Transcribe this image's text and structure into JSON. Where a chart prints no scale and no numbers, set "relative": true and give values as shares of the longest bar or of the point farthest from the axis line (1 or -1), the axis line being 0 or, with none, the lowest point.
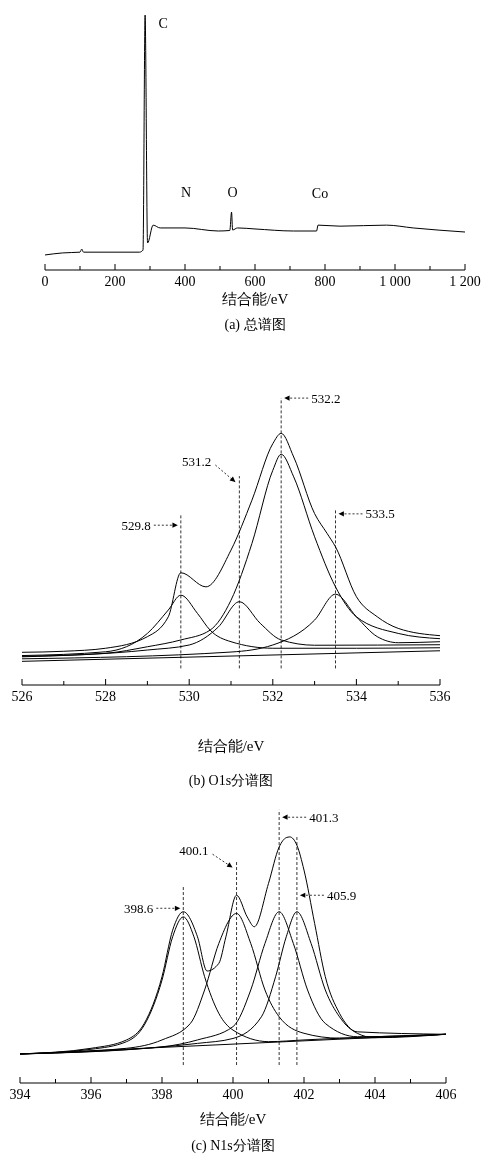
{
  "chart_data": [
    {
      "type": "line",
      "relative": true,
      "xlabel": "结合能/eV",
      "title": "(a) 总谱图",
      "xlim": [
        0,
        1200
      ],
      "xticks": [
        0,
        {
          "value": 100,
          "label": null
        },
        200,
        {
          "value": 300,
          "label": null
        },
        400,
        {
          "value": 500,
          "label": null
        },
        600,
        {
          "value": 700,
          "label": null
        },
        800,
        {
          "value": 900,
          "label": null
        },
        {
          "value": 1000,
          "label": "1 000"
        },
        {
          "value": 1100,
          "label": null
        },
        {
          "value": 1200,
          "label": "1 200"
        }
      ],
      "series": [
        {
          "color": "#000000",
          "x": [
            0,
            50,
            100,
            105,
            110,
            200,
            270,
            280,
            286,
            293,
            309,
            329,
            400,
            495,
            528,
            533,
            536,
            550,
            600,
            710,
            776,
            780,
            843,
            976,
            1052,
            1200
          ],
          "values": [
            0.059,
            0.067,
            0.07,
            0.082,
            0.07,
            0.07,
            0.07,
            0.078,
            1.0,
            0.106,
            0.176,
            0.165,
            0.165,
            0.153,
            0.155,
            0.227,
            0.157,
            0.165,
            0.161,
            0.153,
            0.153,
            0.176,
            0.172,
            0.176,
            0.165,
            0.149
          ]
        }
      ],
      "annotations": [
        {
          "text": "C",
          "x": 286,
          "y": 1.0
        },
        {
          "text": "N",
          "x": 400,
          "y": 0.165
        },
        {
          "text": "O",
          "x": 533,
          "y": 0.227
        },
        {
          "text": "Co",
          "x": 780,
          "y": 0.176
        }
      ]
    },
    {
      "type": "line",
      "relative": true,
      "xlabel": "结合能/eV",
      "title": "(b) O1s分谱图",
      "xlim": [
        526,
        536
      ],
      "xticks": [
        526,
        {
          "value": 527,
          "label": null
        },
        528,
        {
          "value": 529,
          "label": null
        },
        530,
        {
          "value": 531,
          "label": null
        },
        532,
        {
          "value": 533,
          "label": null
        },
        534,
        {
          "value": 535,
          "label": null
        },
        536
      ],
      "series": [
        {
          "color": "#000000",
          "x": [
            526,
            527,
            528,
            529,
            529.5,
            529.8,
            530.4,
            531,
            531.5,
            532,
            532.2,
            532.5,
            533,
            533.3,
            533.5,
            534,
            534.5,
            535,
            536
          ],
          "values": [
            0.13,
            0.134,
            0.146,
            0.192,
            0.271,
            0.446,
            0.39,
            0.536,
            0.734,
            0.959,
            1.0,
            0.906,
            0.681,
            0.602,
            0.549,
            0.351,
            0.271,
            0.225,
            0.196
          ]
        },
        {
          "color": "#000000",
          "x": [
            526,
            528,
            529,
            529.8,
            530.5,
            531,
            531.5,
            532,
            532.2,
            532.5,
            533,
            533.5,
            534,
            535,
            536
          ],
          "values": [
            0.114,
            0.126,
            0.152,
            0.179,
            0.218,
            0.337,
            0.562,
            0.853,
            0.917,
            0.827,
            0.589,
            0.39,
            0.271,
            0.205,
            0.184
          ]
        },
        {
          "color": "#000000",
          "x": [
            526,
            528,
            529,
            529.5,
            529.8,
            530.2,
            530.5,
            531,
            532,
            534,
            536
          ],
          "values": [
            0.117,
            0.132,
            0.205,
            0.298,
            0.357,
            0.284,
            0.218,
            0.172,
            0.146,
            0.146,
            0.148
          ]
        },
        {
          "color": "#000000",
          "x": [
            526,
            529,
            530,
            530.7,
            531.2,
            531.7,
            532.2,
            533,
            536
          ],
          "values": [
            0.112,
            0.139,
            0.159,
            0.231,
            0.331,
            0.245,
            0.179,
            0.158,
            0.16
          ]
        },
        {
          "color": "#000000",
          "x": [
            526,
            531,
            532,
            533,
            533.5,
            534,
            534.5,
            535,
            536
          ],
          "values": [
            0.104,
            0.131,
            0.159,
            0.258,
            0.361,
            0.271,
            0.192,
            0.168,
            0.172
          ]
        },
        {
          "color": "#000000",
          "x": [
            526,
            536
          ],
          "values": [
            0.094,
            0.136
          ]
        }
      ],
      "ref_lines": [
        {
          "axis": "x",
          "value": 529.8,
          "label": "529.8",
          "color": "#000000",
          "line_style": "dashed"
        },
        {
          "axis": "x",
          "value": 531.2,
          "label": "531.2",
          "color": "#000000",
          "line_style": "dashed"
        },
        {
          "axis": "x",
          "value": 532.2,
          "label": "532.2",
          "color": "#000000",
          "line_style": "dashed"
        },
        {
          "axis": "x",
          "value": 533.5,
          "label": "533.5",
          "color": "#000000",
          "line_style": "dashed"
        }
      ]
    },
    {
      "type": "line",
      "relative": true,
      "xlabel": "结合能/eV",
      "title": "(c) N1s分谱图",
      "xlim": [
        394,
        406
      ],
      "xticks": [
        394,
        {
          "value": 395,
          "label": null
        },
        396,
        {
          "value": 397,
          "label": null
        },
        398,
        {
          "value": 399,
          "label": null
        },
        400,
        {
          "value": 401,
          "label": null
        },
        402,
        {
          "value": 403,
          "label": null
        },
        404,
        {
          "value": 405,
          "label": null
        },
        406
      ],
      "series": [
        {
          "color": "#000000",
          "x": [
            394,
            396,
            397,
            397.5,
            398,
            398.3,
            398.6,
            399,
            399.27,
            399.6,
            399.8,
            400.1,
            400.4,
            400.6,
            401,
            401.3,
            401.5,
            401.6,
            401.8,
            402,
            402.3,
            402.6,
            403,
            403.5,
            404,
            406
          ],
          "values": [
            0.118,
            0.141,
            0.175,
            0.242,
            0.432,
            0.621,
            0.696,
            0.594,
            0.455,
            0.486,
            0.594,
            0.763,
            0.675,
            0.635,
            0.811,
            0.959,
            0.997,
            1.0,
            0.966,
            0.865,
            0.648,
            0.432,
            0.283,
            0.202,
            0.184,
            0.198
          ]
        },
        {
          "color": "#000000",
          "x": [
            394,
            396,
            397,
            397.5,
            398,
            398.3,
            398.6,
            398.9,
            399.2,
            399.6,
            400,
            401,
            402,
            403,
            406
          ],
          "values": [
            0.118,
            0.137,
            0.168,
            0.235,
            0.418,
            0.594,
            0.675,
            0.594,
            0.432,
            0.283,
            0.215,
            0.168,
            0.175,
            0.182,
            0.198
          ]
        },
        {
          "color": "#000000",
          "x": [
            394,
            397,
            398,
            398.8,
            399.2,
            399.6,
            400.1,
            400.5,
            400.9,
            401.3,
            402,
            403,
            406
          ],
          "values": [
            0.118,
            0.141,
            0.175,
            0.242,
            0.378,
            0.567,
            0.689,
            0.567,
            0.378,
            0.269,
            0.202,
            0.182,
            0.198
          ]
        },
        {
          "color": "#000000",
          "x": [
            394,
            398,
            399,
            400,
            400.5,
            400.9,
            401.3,
            401.7,
            402.1,
            402.6,
            403.5,
            406
          ],
          "values": [
            0.118,
            0.147,
            0.175,
            0.229,
            0.378,
            0.567,
            0.696,
            0.567,
            0.378,
            0.242,
            0.188,
            0.198
          ]
        },
        {
          "color": "#000000",
          "x": [
            394,
            399,
            400,
            400.8,
            401.2,
            401.5,
            401.8,
            402.2,
            402.6,
            403,
            403.5,
            406
          ],
          "values": [
            0.118,
            0.161,
            0.181,
            0.269,
            0.432,
            0.594,
            0.696,
            0.567,
            0.378,
            0.269,
            0.208,
            0.198
          ]
        },
        {
          "color": "#000000",
          "x": [
            394,
            406
          ],
          "values": [
            0.118,
            0.198
          ]
        }
      ],
      "ref_lines": [
        {
          "axis": "x",
          "value": 398.6,
          "label": "398.6",
          "color": "#000000",
          "line_style": "dashed"
        },
        {
          "axis": "x",
          "value": 400.1,
          "label": "400.1",
          "color": "#000000",
          "line_style": "dashed"
        },
        {
          "axis": "x",
          "value": 401.3,
          "label": "401.3",
          "color": "#000000",
          "line_style": "dashed"
        },
        {
          "axis": "x",
          "value": 401.8,
          "color": "#000000",
          "line_style": "dashed"
        }
      ],
      "annotations": [
        {
          "text": "405.9",
          "x": 401.8,
          "y": 0.763
        }
      ]
    }
  ]
}
